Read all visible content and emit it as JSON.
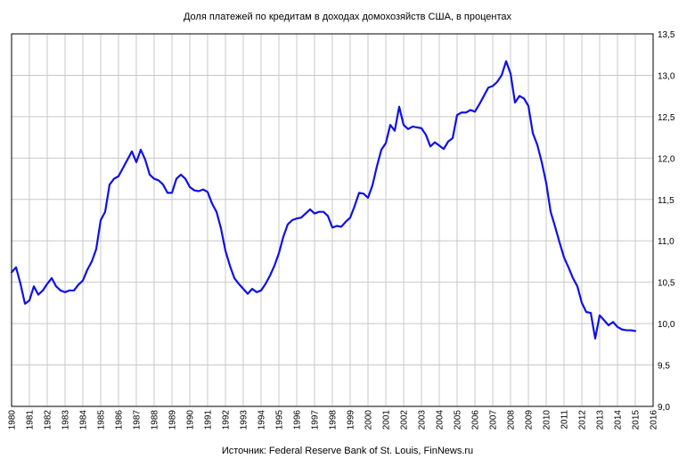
{
  "chart_data": {
    "type": "line",
    "title": "Доля платежей по кредитам в доходах домохозяйств США, в процентах",
    "source": "Источник: Federal Reserve Bank of St. Louis, FinNews.ru",
    "xlabel": "",
    "ylabel": "",
    "xlim": [
      1980,
      2016
    ],
    "ylim": [
      9.0,
      13.5
    ],
    "y_ticks": [
      "9,0",
      "9,5",
      "10,0",
      "10,5",
      "11,0",
      "11,5",
      "12,0",
      "12,5",
      "13,0",
      "13,5"
    ],
    "x_ticks": [
      "1980",
      "1981",
      "1982",
      "1983",
      "1984",
      "1985",
      "1986",
      "1987",
      "1988",
      "1989",
      "1990",
      "1991",
      "1992",
      "1993",
      "1994",
      "1995",
      "1996",
      "1997",
      "1998",
      "1999",
      "2000",
      "2001",
      "2002",
      "2003",
      "2004",
      "2005",
      "2006",
      "2007",
      "2008",
      "2009",
      "2010",
      "2011",
      "2012",
      "2013",
      "2014",
      "2015",
      "2016"
    ],
    "grid": true,
    "line_color": "#1010e8",
    "grid_color": "#c8c8c8",
    "series": [
      {
        "x": [
          1980.0,
          1980.25,
          1980.5,
          1980.75,
          1981.0,
          1981.25,
          1981.5,
          1981.75,
          1982.0,
          1982.25,
          1982.5,
          1982.75,
          1983.0,
          1983.25,
          1983.5,
          1983.75,
          1984.0,
          1984.25,
          1984.5,
          1984.75,
          1985.0,
          1985.25,
          1985.5,
          1985.75,
          1986.0,
          1986.25,
          1986.5,
          1986.75,
          1987.0,
          1987.25,
          1987.5,
          1987.75,
          1988.0,
          1988.25,
          1988.5,
          1988.75,
          1989.0,
          1989.25,
          1989.5,
          1989.75,
          1990.0,
          1990.25,
          1990.5,
          1990.75,
          1991.0,
          1991.25,
          1991.5,
          1991.75,
          1992.0,
          1992.25,
          1992.5,
          1992.75,
          1993.0,
          1993.25,
          1993.5,
          1993.75,
          1994.0,
          1994.25,
          1994.5,
          1994.75,
          1995.0,
          1995.25,
          1995.5,
          1995.75,
          1996.0,
          1996.25,
          1996.5,
          1996.75,
          1997.0,
          1997.25,
          1997.5,
          1997.75,
          1998.0,
          1998.25,
          1998.5,
          1998.75,
          1999.0,
          1999.25,
          1999.5,
          1999.75,
          2000.0,
          2000.25,
          2000.5,
          2000.75,
          2001.0,
          2001.25,
          2001.5,
          2001.75,
          2002.0,
          2002.25,
          2002.5,
          2002.75,
          2003.0,
          2003.25,
          2003.5,
          2003.75,
          2004.0,
          2004.25,
          2004.5,
          2004.75,
          2005.0,
          2005.25,
          2005.5,
          2005.75,
          2006.0,
          2006.25,
          2006.5,
          2006.75,
          2007.0,
          2007.25,
          2007.5,
          2007.75,
          2008.0,
          2008.25,
          2008.5,
          2008.75,
          2009.0,
          2009.25,
          2009.5,
          2009.75,
          2010.0,
          2010.25,
          2010.5,
          2010.75,
          2011.0,
          2011.25,
          2011.5,
          2011.75,
          2012.0,
          2012.25,
          2012.5,
          2012.75,
          2013.0,
          2013.25,
          2013.5,
          2013.75,
          2014.0,
          2014.25,
          2014.5,
          2014.75,
          2015.0
        ],
        "values": [
          10.62,
          10.68,
          10.48,
          10.24,
          10.28,
          10.45,
          10.35,
          10.4,
          10.48,
          10.55,
          10.45,
          10.4,
          10.38,
          10.4,
          10.4,
          10.47,
          10.52,
          10.65,
          10.75,
          10.9,
          11.25,
          11.35,
          11.68,
          11.75,
          11.78,
          11.88,
          11.98,
          12.08,
          11.95,
          12.1,
          11.98,
          11.8,
          11.75,
          11.73,
          11.68,
          11.58,
          11.58,
          11.75,
          11.8,
          11.75,
          11.65,
          11.61,
          11.6,
          11.62,
          11.59,
          11.45,
          11.35,
          11.15,
          10.88,
          10.7,
          10.55,
          10.48,
          10.42,
          10.36,
          10.42,
          10.38,
          10.4,
          10.48,
          10.58,
          10.7,
          10.85,
          11.05,
          11.2,
          11.25,
          11.27,
          11.28,
          11.33,
          11.38,
          11.33,
          11.35,
          11.35,
          11.3,
          11.16,
          11.18,
          11.17,
          11.23,
          11.28,
          11.42,
          11.58,
          11.57,
          11.52,
          11.67,
          11.9,
          12.1,
          12.18,
          12.4,
          12.33,
          12.62,
          12.4,
          12.35,
          12.38,
          12.37,
          12.36,
          12.28,
          12.14,
          12.19,
          12.15,
          12.11,
          12.2,
          12.24,
          12.52,
          12.55,
          12.55,
          12.58,
          12.56,
          12.65,
          12.75,
          12.85,
          12.87,
          12.92,
          13.0,
          13.17,
          13.02,
          12.67,
          12.75,
          12.72,
          12.63,
          12.3,
          12.16,
          11.95,
          11.7,
          11.35,
          11.17,
          10.98,
          10.8,
          10.68,
          10.55,
          10.45,
          10.25,
          10.14,
          10.13,
          9.82,
          10.1,
          10.04,
          9.98,
          10.02,
          9.96,
          9.93,
          9.92,
          9.92,
          9.91
        ]
      }
    ]
  }
}
